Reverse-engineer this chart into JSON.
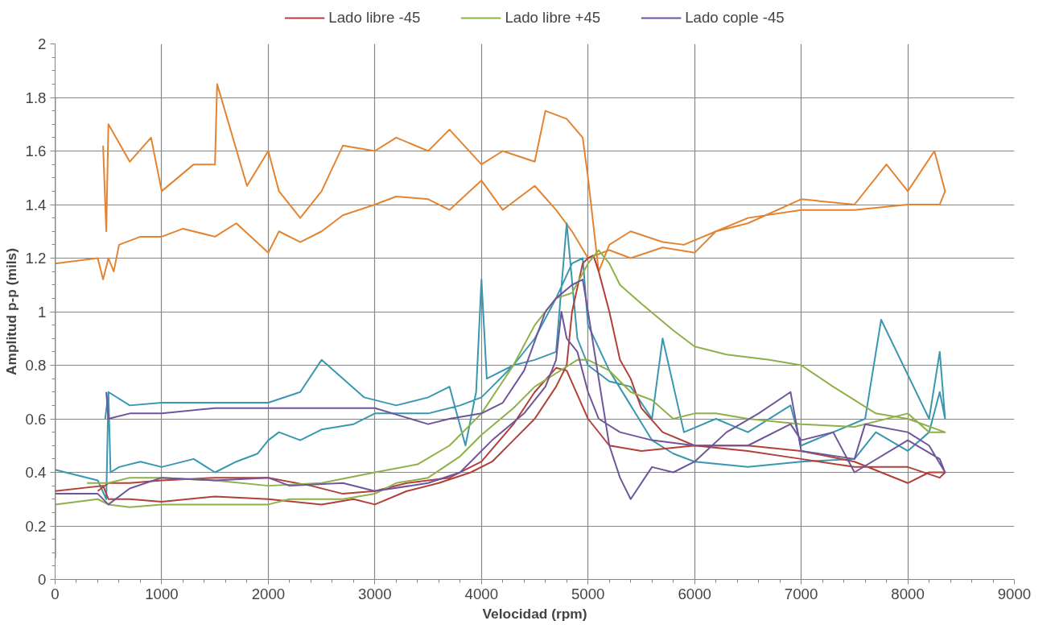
{
  "chart_data": {
    "type": "line",
    "xlabel": "Velocidad (rpm)",
    "ylabel": "Amplitud p-p (mils)",
    "xlim": [
      0,
      9000
    ],
    "xticks": [
      0,
      1000,
      2000,
      3000,
      4000,
      5000,
      6000,
      7000,
      8000,
      9000
    ],
    "ylim": [
      0,
      2
    ],
    "yticks": [
      0,
      0.2,
      0.4,
      0.6,
      0.8,
      1,
      1.2,
      1.4,
      1.6,
      1.8,
      2
    ],
    "grid": true,
    "legend": "top",
    "marker": "none",
    "line_style": "solid",
    "series": [
      {
        "color": "#e38432",
        "x": [
          0,
          0,
          0,
          400,
          450,
          500,
          550,
          600,
          800,
          1000,
          1200,
          1500,
          1700,
          2000,
          2100,
          2300,
          2500,
          2700,
          3000,
          3200,
          3500,
          3700,
          4000,
          4200,
          4500,
          4700,
          4850,
          5000,
          5200,
          5400,
          5700,
          6000,
          6200,
          6500,
          7000,
          7500,
          8000,
          8300,
          8350,
          8250,
          8000,
          7800,
          7500,
          7000,
          6500,
          6200,
          5900,
          5700,
          5400,
          5200,
          5100,
          5000,
          4950,
          4800,
          4600,
          4500,
          4200,
          4000,
          3700,
          3500,
          3200,
          3000,
          2700,
          2500,
          2300,
          2100,
          2000,
          1800,
          1520,
          1500,
          1300,
          1000,
          900,
          700,
          500,
          480,
          450
        ],
        "values": [
          0.08,
          1.8,
          1.18,
          1.2,
          1.12,
          1.2,
          1.15,
          1.25,
          1.28,
          1.28,
          1.31,
          1.28,
          1.33,
          1.22,
          1.3,
          1.26,
          1.3,
          1.36,
          1.4,
          1.43,
          1.42,
          1.38,
          1.49,
          1.38,
          1.47,
          1.38,
          1.3,
          1.2,
          1.23,
          1.2,
          1.24,
          1.22,
          1.3,
          1.35,
          1.38,
          1.38,
          1.4,
          1.4,
          1.45,
          1.6,
          1.45,
          1.55,
          1.4,
          1.42,
          1.33,
          1.3,
          1.25,
          1.26,
          1.3,
          1.25,
          1.15,
          1.5,
          1.65,
          1.72,
          1.75,
          1.56,
          1.6,
          1.55,
          1.68,
          1.6,
          1.65,
          1.6,
          1.62,
          1.45,
          1.35,
          1.45,
          1.6,
          1.47,
          1.85,
          1.55,
          1.55,
          1.45,
          1.65,
          1.56,
          1.7,
          1.3,
          1.62
        ]
      },
      {
        "color": "#3a97b0",
        "x": [
          0,
          400,
          480,
          500,
          520,
          600,
          800,
          1000,
          1300,
          1500,
          1700,
          1900,
          2000,
          2100,
          2300,
          2500,
          2800,
          3000,
          3500,
          3800,
          4000,
          4100,
          4300,
          4500,
          4700,
          4850,
          4950,
          5000,
          5200,
          5400,
          5600,
          5800,
          6000,
          6500,
          7000,
          7500,
          7700,
          8000,
          8200,
          8300,
          8350,
          8300,
          8200,
          7750,
          7600,
          7000,
          6900,
          6500,
          6200,
          5900,
          5700,
          5600,
          5400,
          5200,
          5000,
          4900,
          4800,
          4700,
          4500,
          4300,
          4050,
          4000,
          3950,
          3850,
          3700,
          3500,
          3200,
          2900,
          2500,
          2300,
          2000,
          1500,
          1000,
          700,
          500,
          470
        ],
        "values": [
          0.41,
          0.37,
          0.3,
          0.7,
          0.4,
          0.42,
          0.44,
          0.42,
          0.45,
          0.4,
          0.44,
          0.47,
          0.52,
          0.55,
          0.52,
          0.56,
          0.58,
          0.62,
          0.62,
          0.65,
          0.68,
          0.72,
          0.8,
          0.9,
          1.05,
          1.18,
          1.2,
          0.95,
          0.78,
          0.65,
          0.52,
          0.47,
          0.44,
          0.42,
          0.44,
          0.45,
          0.55,
          0.48,
          0.55,
          0.7,
          0.6,
          0.85,
          0.6,
          0.97,
          0.6,
          0.5,
          0.65,
          0.55,
          0.6,
          0.55,
          0.9,
          0.6,
          0.72,
          0.74,
          0.8,
          0.9,
          1.33,
          0.85,
          0.82,
          0.8,
          0.75,
          1.12,
          0.7,
          0.5,
          0.72,
          0.68,
          0.65,
          0.68,
          0.82,
          0.7,
          0.66,
          0.66,
          0.66,
          0.65,
          0.7,
          0.6
        ]
      },
      {
        "name": "Lado libre -45",
        "color": "#b2403a",
        "x": [
          0,
          450,
          500,
          700,
          1000,
          1500,
          2000,
          2500,
          2800,
          3000,
          3300,
          3600,
          3900,
          4100,
          4300,
          4500,
          4700,
          4800,
          4850,
          4950,
          5000,
          5050,
          5100,
          5200,
          5300,
          5400,
          5500,
          5700,
          6000,
          6500,
          7000,
          7500,
          8000,
          8300,
          8350,
          8200,
          8000,
          7500,
          7000,
          6500,
          6000,
          5500,
          5200,
          5000,
          4800,
          4700,
          4500,
          4300,
          4000,
          3700,
          3300,
          3000,
          2700,
          2400,
          2000,
          1500,
          1000,
          700,
          500,
          400
        ],
        "values": [
          0.33,
          0.35,
          0.3,
          0.3,
          0.29,
          0.31,
          0.3,
          0.28,
          0.3,
          0.28,
          0.33,
          0.36,
          0.4,
          0.44,
          0.52,
          0.6,
          0.72,
          0.8,
          1.0,
          1.18,
          1.2,
          1.21,
          1.15,
          1.0,
          0.82,
          0.75,
          0.64,
          0.55,
          0.5,
          0.48,
          0.45,
          0.42,
          0.42,
          0.38,
          0.4,
          0.4,
          0.36,
          0.44,
          0.48,
          0.5,
          0.5,
          0.48,
          0.5,
          0.6,
          0.78,
          0.79,
          0.7,
          0.58,
          0.44,
          0.38,
          0.36,
          0.33,
          0.32,
          0.35,
          0.38,
          0.38,
          0.37,
          0.36,
          0.36,
          0.33
        ]
      },
      {
        "name": "Lado libre +45",
        "color": "#8fb04a",
        "x": [
          0,
          0,
          400,
          500,
          700,
          1000,
          1500,
          2000,
          2200,
          2700,
          3000,
          3200,
          3500,
          3800,
          4000,
          4300,
          4500,
          4700,
          4900,
          5000,
          5200,
          5400,
          5600,
          5800,
          6000,
          6200,
          6500,
          7000,
          7500,
          8000,
          8200,
          8350,
          8000,
          7700,
          7300,
          7000,
          6700,
          6300,
          6000,
          5800,
          5500,
          5300,
          5200,
          5100,
          5000,
          4850,
          4700,
          4500,
          4300,
          4000,
          3700,
          3400,
          3000,
          2500,
          2000,
          1500,
          1000,
          700,
          500,
          300
        ],
        "values": [
          0.08,
          0.28,
          0.3,
          0.28,
          0.27,
          0.28,
          0.28,
          0.28,
          0.3,
          0.3,
          0.32,
          0.36,
          0.38,
          0.46,
          0.54,
          0.64,
          0.72,
          0.77,
          0.82,
          0.82,
          0.78,
          0.7,
          0.67,
          0.6,
          0.62,
          0.62,
          0.6,
          0.58,
          0.57,
          0.62,
          0.55,
          0.55,
          0.6,
          0.62,
          0.72,
          0.8,
          0.82,
          0.84,
          0.87,
          0.93,
          1.03,
          1.1,
          1.18,
          1.23,
          1.18,
          1.07,
          1.05,
          0.95,
          0.8,
          0.62,
          0.5,
          0.43,
          0.4,
          0.36,
          0.35,
          0.37,
          0.38,
          0.38,
          0.36,
          0.36
        ]
      },
      {
        "name": "Lado cople -45",
        "color": "#6f559a",
        "x": [
          0,
          400,
          500,
          700,
          1000,
          1500,
          2000,
          2200,
          2700,
          3000,
          3500,
          3800,
          4100,
          4400,
          4600,
          4700,
          4750,
          4800,
          4900,
          5000,
          5100,
          5300,
          5600,
          6000,
          6500,
          6900,
          7000,
          7300,
          7500,
          8000,
          8300,
          8350,
          8200,
          8000,
          7600,
          7500,
          7000,
          6900,
          6600,
          6300,
          6000,
          5800,
          5600,
          5400,
          5300,
          5200,
          5100,
          5000,
          4950,
          4850,
          4700,
          4600,
          4400,
          4200,
          4000,
          3700,
          3500,
          3000,
          2500,
          2000,
          1500,
          1000,
          700,
          500,
          480
        ],
        "values": [
          0.32,
          0.32,
          0.28,
          0.34,
          0.38,
          0.37,
          0.38,
          0.35,
          0.36,
          0.33,
          0.36,
          0.4,
          0.52,
          0.62,
          0.72,
          0.82,
          1.0,
          0.9,
          0.85,
          0.7,
          0.6,
          0.55,
          0.52,
          0.5,
          0.5,
          0.58,
          0.52,
          0.55,
          0.4,
          0.52,
          0.45,
          0.4,
          0.5,
          0.55,
          0.58,
          0.45,
          0.48,
          0.7,
          0.62,
          0.55,
          0.44,
          0.4,
          0.42,
          0.3,
          0.38,
          0.5,
          0.75,
          1.0,
          1.12,
          1.1,
          1.05,
          1.0,
          0.78,
          0.66,
          0.62,
          0.6,
          0.58,
          0.64,
          0.64,
          0.64,
          0.64,
          0.62,
          0.62,
          0.6,
          0.7
        ]
      }
    ]
  }
}
